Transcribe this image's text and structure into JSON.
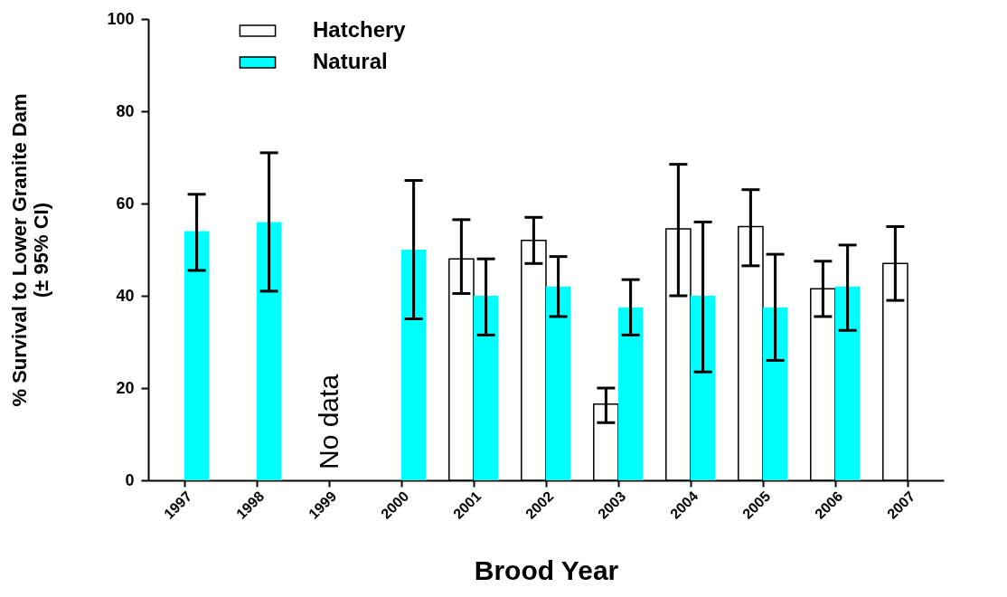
{
  "chart_data": {
    "type": "bar",
    "xlabel": "Brood Year",
    "ylabel": "% Survival to Lower Granite Dam\n(± 95% CI)",
    "categories": [
      "1997",
      "1998",
      "1999",
      "2000",
      "2001",
      "2002",
      "2003",
      "2004",
      "2005",
      "2006",
      "2007"
    ],
    "series": [
      {
        "name": "Hatchery",
        "color": "#ffffff",
        "values": [
          null,
          null,
          null,
          null,
          48,
          52,
          16.5,
          54.5,
          55,
          41.5,
          47
        ],
        "errors": [
          null,
          null,
          null,
          null,
          [
            40.5,
            56.5
          ],
          [
            47,
            57
          ],
          [
            12.5,
            20
          ],
          [
            40,
            68.5
          ],
          [
            46.5,
            63
          ],
          [
            35.5,
            47.5
          ],
          [
            39,
            55
          ]
        ]
      },
      {
        "name": "Natural",
        "color": "#00ffff",
        "values": [
          54,
          56,
          null,
          50,
          40,
          42,
          37.5,
          40,
          37.5,
          42,
          null
        ],
        "errors": [
          [
            45.5,
            62
          ],
          [
            41,
            71
          ],
          null,
          [
            35,
            65
          ],
          [
            31.5,
            48
          ],
          [
            35.5,
            48.5
          ],
          [
            31.5,
            43.5
          ],
          [
            23.5,
            56
          ],
          [
            26,
            49
          ],
          [
            32.5,
            51
          ],
          null
        ]
      }
    ],
    "annotations": [
      "No data"
    ],
    "ylim": [
      0,
      100
    ],
    "yticks": [
      0,
      20,
      40,
      60,
      80,
      100
    ],
    "grid": false,
    "legend": "top left"
  }
}
